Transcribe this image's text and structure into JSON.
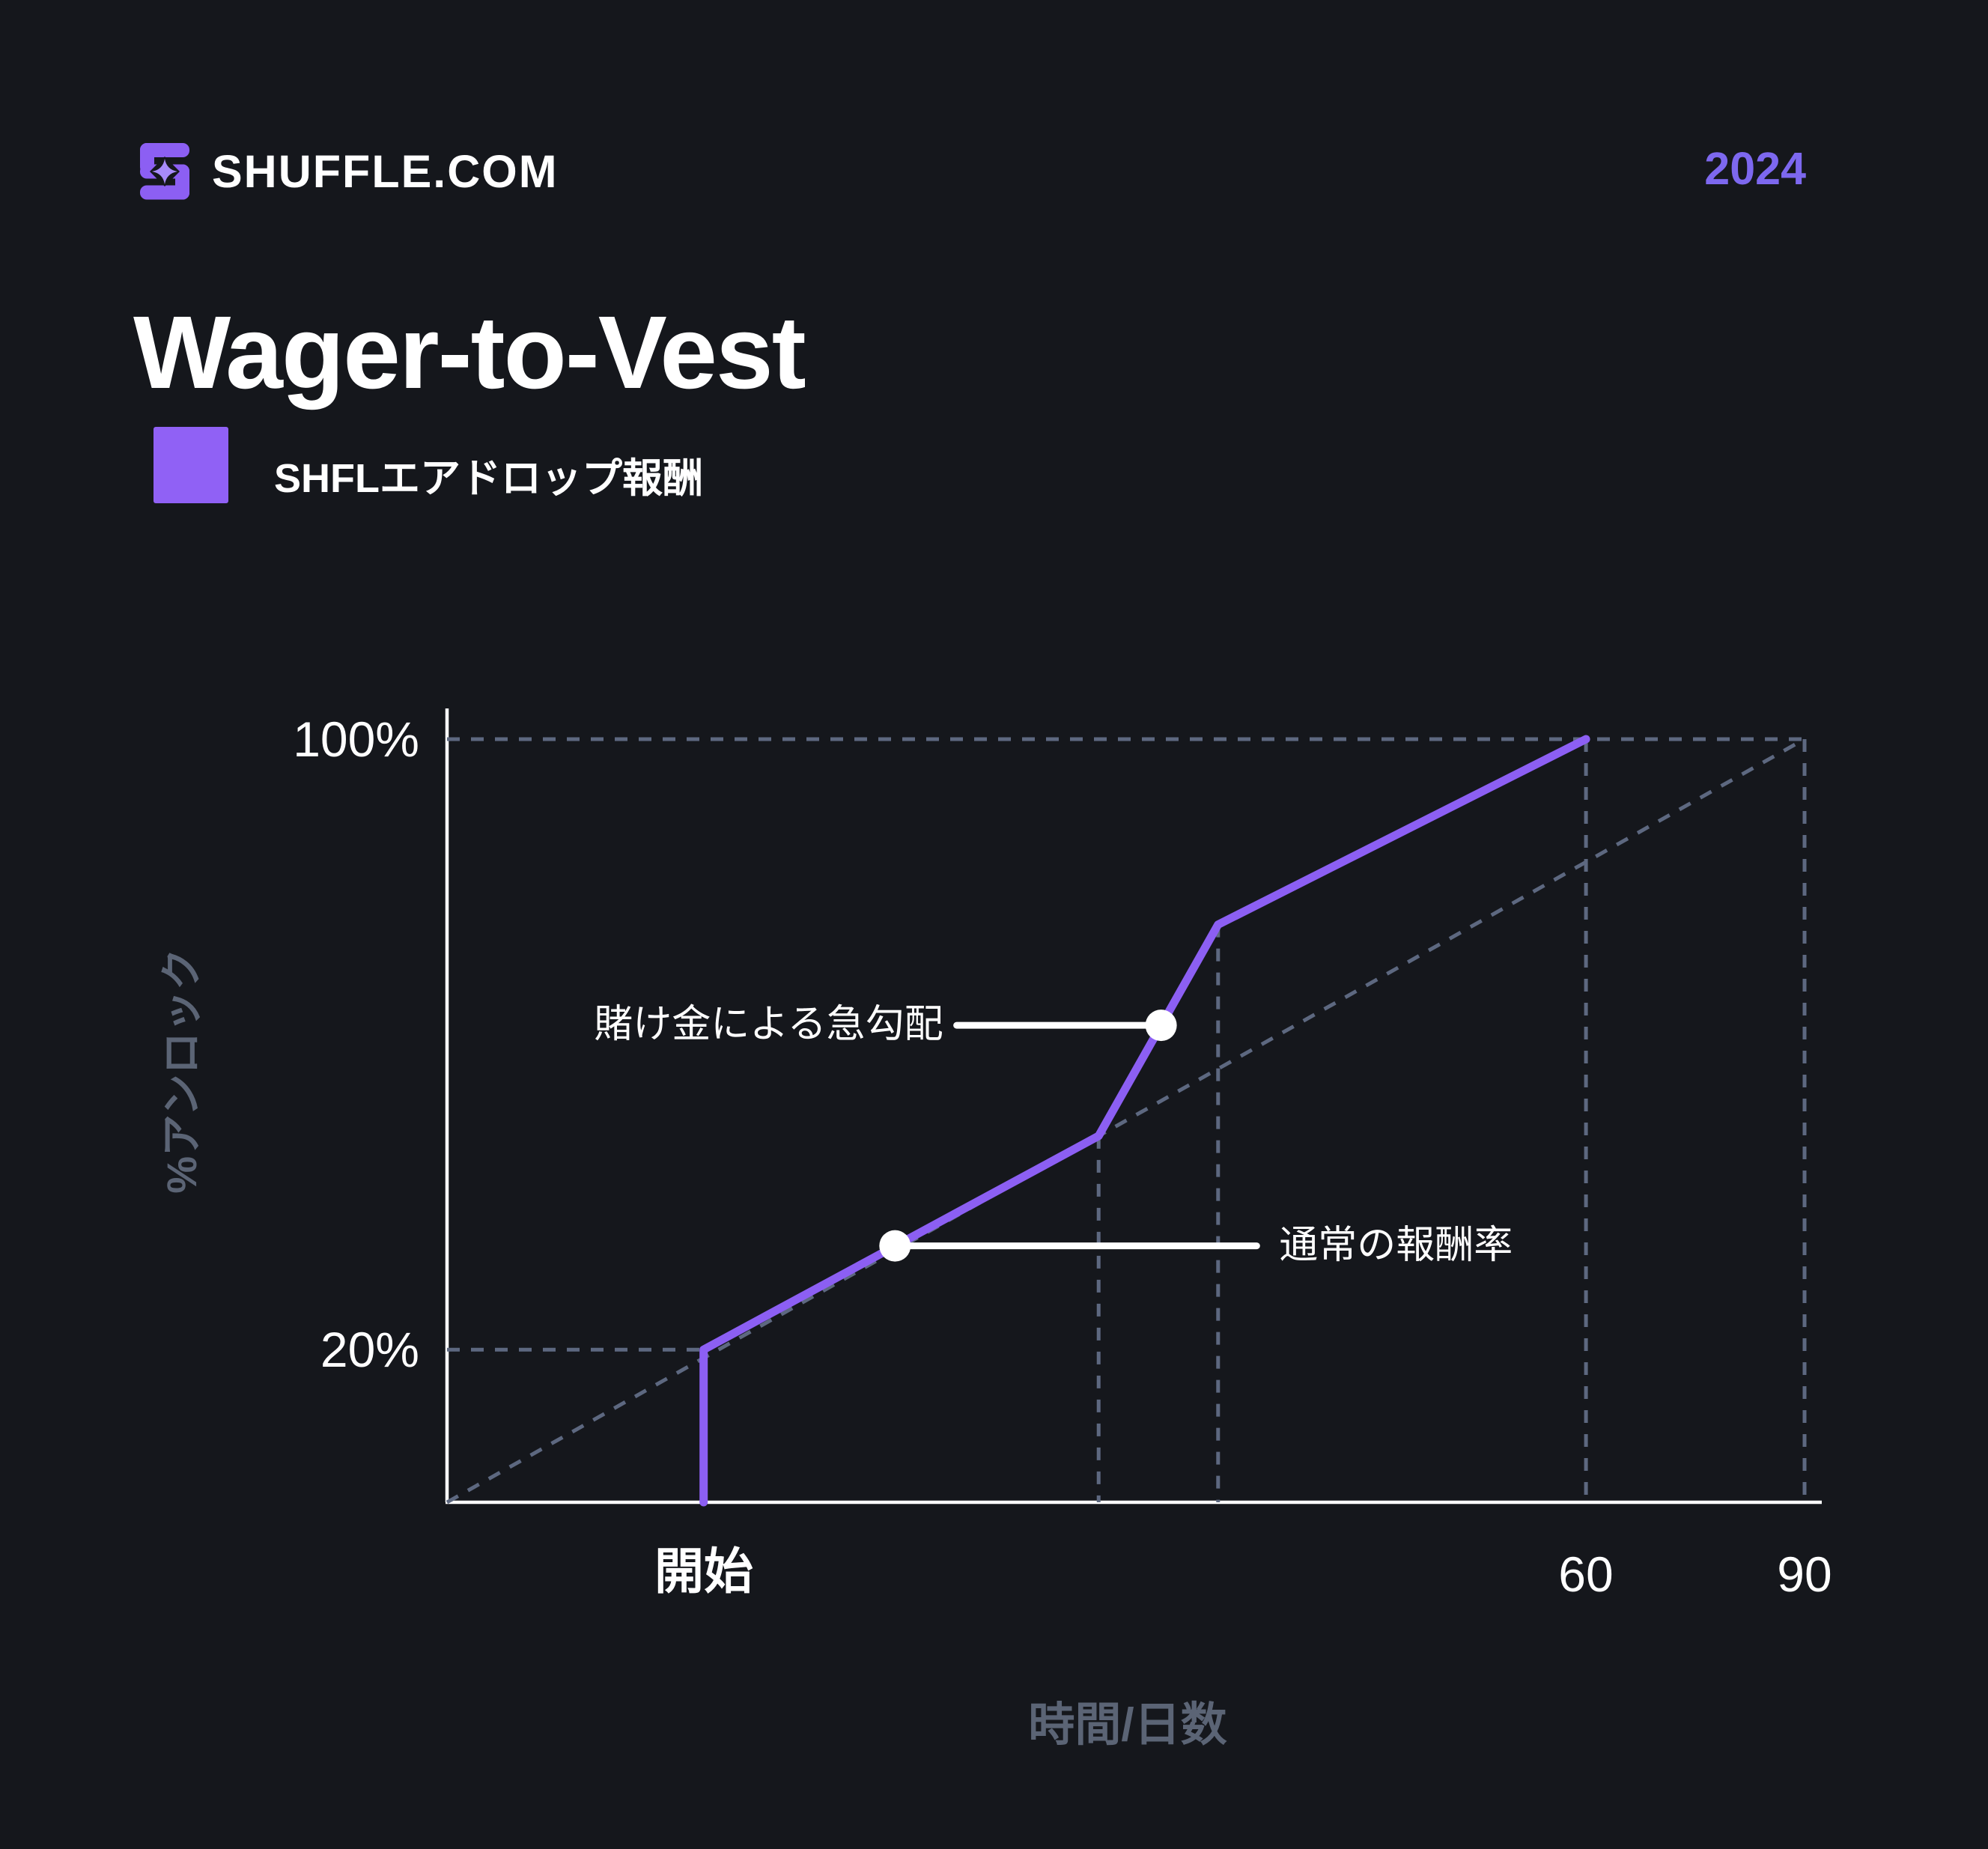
{
  "header": {
    "brand": "SHUFFLE.COM",
    "year": "2024",
    "logo_icon": "shuffle-logo-icon"
  },
  "title": "Wager-to-Vest",
  "legend": {
    "label": "SHFLエアドロップ報酬",
    "swatch_color": "#9061f5"
  },
  "colors": {
    "background": "#15171c",
    "accent": "#8c5ff3",
    "accent_light": "#a78bfa",
    "year_accent": "#7d68ef",
    "slate_text": "#5b6475",
    "guide_dash": "#5d6880",
    "white": "#ffffff"
  },
  "chart_data": {
    "type": "line",
    "title": "Wager-to-Vest",
    "xlabel": "時間/日数",
    "ylabel": "%アンロック",
    "ylim": [
      0,
      100
    ],
    "x_axis_unit": "days",
    "grid": "off",
    "x_ticks": [
      {
        "label": "開始",
        "x": 18.9,
        "bold": true
      },
      {
        "label": "60",
        "x": 83.9,
        "bold": false
      },
      {
        "label": "90",
        "x": 100,
        "bold": false
      }
    ],
    "y_ticks": [
      {
        "label": "100%",
        "y": 100
      },
      {
        "label": "20%",
        "y": 20
      }
    ],
    "series": [
      {
        "name": "SHFLエアドロップ報酬",
        "color": "#8c5ff3",
        "points": [
          [
            18.9,
            0
          ],
          [
            18.9,
            20
          ],
          [
            48,
            48
          ],
          [
            56.8,
            75.7
          ],
          [
            83.9,
            100
          ]
        ]
      }
    ],
    "baseline": {
      "name": "linear-vesting-baseline",
      "style": "dashed",
      "points": [
        [
          0,
          0
        ],
        [
          100,
          100
        ]
      ]
    },
    "guides": {
      "horizontal": [
        {
          "y": 100,
          "x_from": 0,
          "x_to": 100
        },
        {
          "y": 20,
          "x_from": 0,
          "x_to": 18.9
        }
      ],
      "vertical": [
        {
          "x": 48,
          "y_top": 48
        },
        {
          "x": 56.8,
          "y_top": 75.7
        },
        {
          "x": 83.9,
          "y_top": 100
        },
        {
          "x": 100,
          "y_top": 100
        }
      ]
    },
    "annotations": [
      {
        "text": "賭け金による急勾配",
        "anchor": [
          52.6,
          62.5
        ],
        "side": "left"
      },
      {
        "text": "通常の報酬率",
        "anchor": [
          33,
          33.6
        ],
        "side": "right"
      }
    ]
  }
}
